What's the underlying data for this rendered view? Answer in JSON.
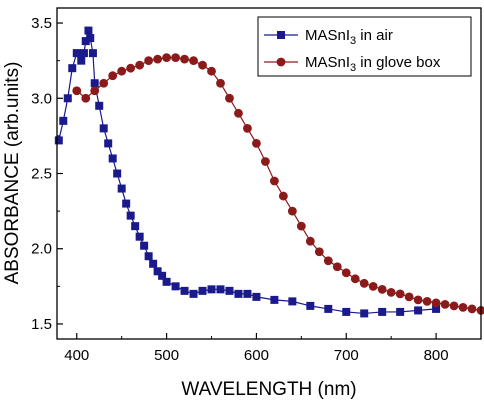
{
  "chart_data": {
    "type": "scatter",
    "xlabel": "WAVELENGTH (nm)",
    "ylabel": "ABSORBANCE (arb.units)",
    "xlim": [
      378,
      850
    ],
    "ylim": [
      1.4,
      3.6
    ],
    "x_ticks": [
      400,
      500,
      600,
      700,
      800
    ],
    "y_ticks": [
      1.5,
      2.0,
      2.5,
      3.0,
      3.5
    ],
    "x_tick_labels": [
      "400",
      "500",
      "600",
      "700",
      "800"
    ],
    "y_tick_labels": [
      "1.5",
      "2.0",
      "2.5",
      "3.0",
      "3.5"
    ],
    "grid": false,
    "legend_position": "top-right",
    "series": [
      {
        "name": "MASnI3 in air",
        "color": "#1a1a8c",
        "marker": "square",
        "x": [
          380,
          385,
          390,
          395,
          400,
          405,
          408,
          410,
          413,
          415,
          418,
          420,
          425,
          430,
          435,
          440,
          445,
          450,
          455,
          460,
          465,
          470,
          475,
          480,
          485,
          490,
          495,
          500,
          510,
          520,
          530,
          540,
          550,
          560,
          570,
          580,
          590,
          600,
          620,
          640,
          660,
          680,
          700,
          720,
          740,
          760,
          780,
          800
        ],
        "y": [
          2.72,
          2.85,
          3.0,
          3.2,
          3.3,
          3.25,
          3.3,
          3.38,
          3.45,
          3.4,
          3.3,
          3.1,
          2.95,
          2.8,
          2.7,
          2.6,
          2.5,
          2.4,
          2.3,
          2.22,
          2.15,
          2.08,
          2.02,
          1.95,
          1.9,
          1.85,
          1.82,
          1.78,
          1.75,
          1.72,
          1.7,
          1.72,
          1.73,
          1.73,
          1.72,
          1.7,
          1.7,
          1.68,
          1.66,
          1.65,
          1.62,
          1.6,
          1.58,
          1.57,
          1.58,
          1.58,
          1.59,
          1.6
        ]
      },
      {
        "name": "MASnI3 in glove box",
        "color": "#8b1a1a",
        "marker": "circle",
        "x": [
          400,
          410,
          420,
          430,
          440,
          450,
          460,
          470,
          480,
          490,
          500,
          510,
          520,
          530,
          540,
          550,
          560,
          570,
          580,
          590,
          600,
          610,
          620,
          630,
          640,
          650,
          660,
          670,
          680,
          690,
          700,
          710,
          720,
          730,
          740,
          750,
          760,
          770,
          780,
          790,
          800,
          810,
          820,
          830,
          840,
          850
        ],
        "y": [
          3.05,
          3.0,
          3.05,
          3.1,
          3.15,
          3.18,
          3.2,
          3.22,
          3.25,
          3.26,
          3.27,
          3.27,
          3.26,
          3.25,
          3.22,
          3.18,
          3.1,
          3.0,
          2.9,
          2.8,
          2.7,
          2.58,
          2.45,
          2.35,
          2.25,
          2.15,
          2.05,
          1.98,
          1.92,
          1.88,
          1.84,
          1.8,
          1.77,
          1.75,
          1.73,
          1.71,
          1.7,
          1.68,
          1.66,
          1.65,
          1.64,
          1.63,
          1.62,
          1.61,
          1.6,
          1.59
        ]
      }
    ]
  },
  "legend": {
    "items": [
      {
        "prefix": "MASnI",
        "subscript": "3",
        "suffix": " in air",
        "color": "#1a1a8c",
        "marker": "square"
      },
      {
        "prefix": "MASnI",
        "subscript": "3",
        "suffix": " in glove box",
        "color": "#8b1a1a",
        "marker": "circle"
      }
    ]
  }
}
